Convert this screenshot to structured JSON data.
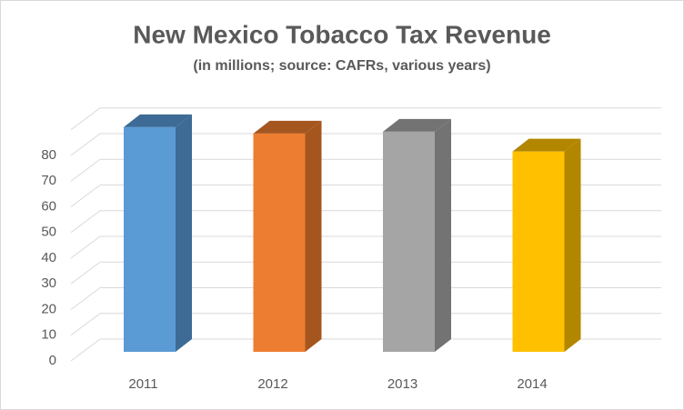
{
  "chart_data": {
    "type": "bar3d",
    "title": "New Mexico Tobacco Tax Revenue",
    "subtitle": "(in millions; source: CAFRs, various years)",
    "categories": [
      "2011",
      "2012",
      "2013",
      "2014"
    ],
    "values": [
      87.5,
      85,
      85.7,
      78
    ],
    "colors": [
      "#5b9bd5",
      "#ed7d31",
      "#a5a5a5",
      "#ffc000"
    ],
    "side_colors": [
      "#3d6b95",
      "#a5561f",
      "#737373",
      "#b38600"
    ],
    "ylim": [
      0,
      90
    ],
    "yticks": [
      0,
      10,
      20,
      30,
      40,
      50,
      60,
      70,
      80
    ],
    "grid": true
  }
}
